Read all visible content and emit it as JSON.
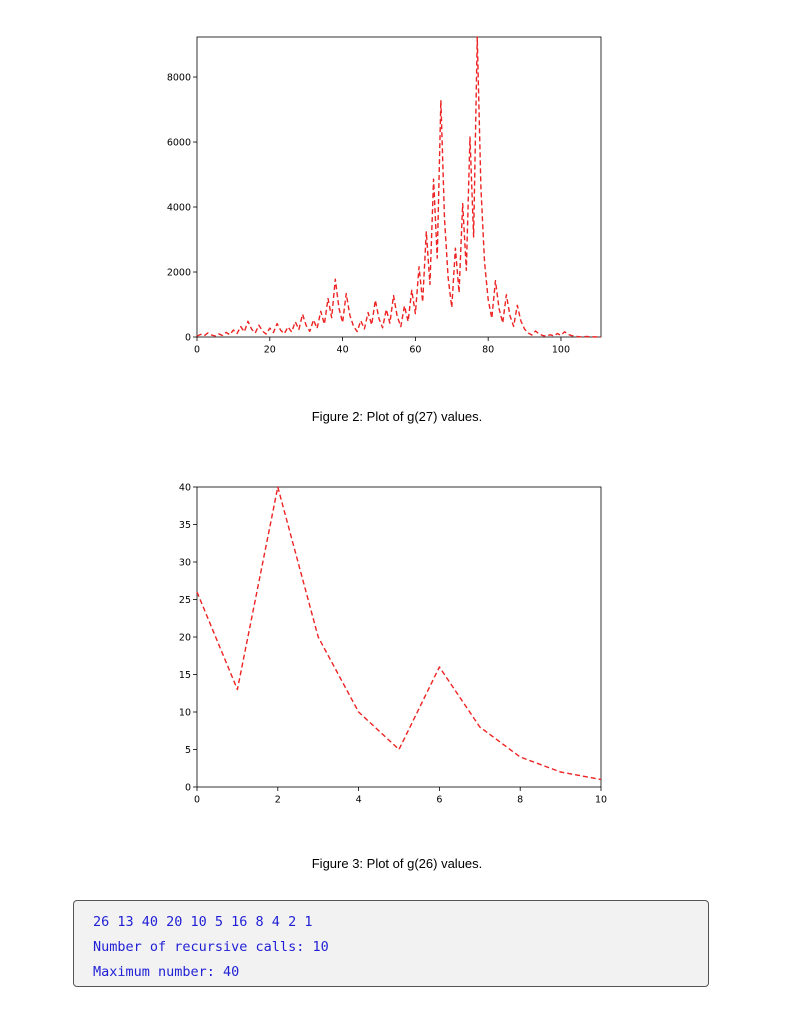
{
  "figures": [
    {
      "caption": "Figure 2: Plot of g(27) values.",
      "chart_data": {
        "type": "line",
        "line_style": "dashed",
        "color": "#ee2222",
        "xlim": [
          0,
          111
        ],
        "ylim": [
          0,
          9232
        ],
        "xticks": [
          0,
          20,
          40,
          60,
          80,
          100
        ],
        "yticks": [
          0,
          2000,
          4000,
          6000,
          8000
        ],
        "x_start": 0,
        "y": [
          27,
          82,
          41,
          124,
          62,
          31,
          94,
          47,
          142,
          71,
          214,
          107,
          322,
          161,
          484,
          242,
          121,
          364,
          182,
          91,
          274,
          137,
          412,
          206,
          103,
          310,
          155,
          466,
          233,
          700,
          350,
          175,
          526,
          263,
          790,
          395,
          1186,
          593,
          1780,
          890,
          445,
          1336,
          668,
          334,
          167,
          502,
          251,
          754,
          377,
          1132,
          566,
          283,
          850,
          425,
          1276,
          638,
          319,
          958,
          479,
          1438,
          719,
          2158,
          1079,
          3238,
          1619,
          4858,
          2429,
          7288,
          3644,
          1822,
          911,
          2734,
          1367,
          4102,
          2051,
          6154,
          3077,
          9232,
          4616,
          2308,
          1154,
          577,
          1732,
          866,
          433,
          1300,
          650,
          325,
          976,
          488,
          244,
          122,
          61,
          184,
          92,
          46,
          23,
          70,
          35,
          106,
          53,
          160,
          80,
          40,
          20,
          10,
          5,
          16,
          8,
          4,
          2,
          1
        ]
      }
    },
    {
      "caption": "Figure 3: Plot of g(26) values.",
      "chart_data": {
        "type": "line",
        "line_style": "dashed",
        "color": "#ee2222",
        "xlim": [
          0,
          10
        ],
        "ylim": [
          0,
          40
        ],
        "xticks": [
          0,
          2,
          4,
          6,
          8,
          10
        ],
        "yticks": [
          0,
          5,
          10,
          15,
          20,
          25,
          30,
          35,
          40
        ],
        "x_start": 0,
        "y": [
          26,
          13,
          40,
          20,
          10,
          5,
          16,
          8,
          4,
          2,
          1
        ]
      }
    }
  ],
  "output": {
    "lines": [
      "26 13 40 20 10 5 16 8 4 2 1",
      "Number of recursive calls: 10",
      "Maximum number: 40"
    ]
  }
}
